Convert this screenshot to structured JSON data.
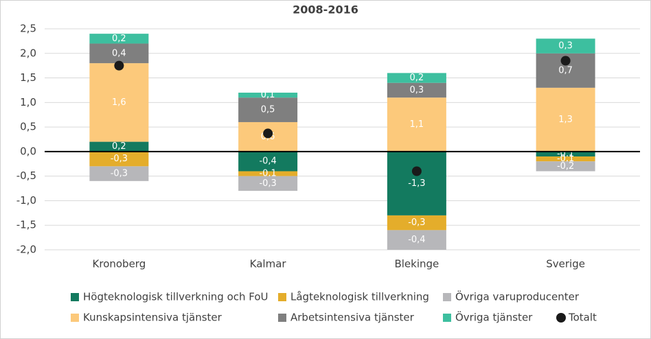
{
  "chart_data": {
    "type": "bar",
    "stacked": true,
    "title": "2008-2016",
    "categories": [
      "Kronoberg",
      "Kalmar",
      "Blekinge",
      "Sverige"
    ],
    "series": [
      {
        "name": "Högteknologisk tillverkning och FoU",
        "color": "#137a5f",
        "values": [
          0.2,
          -0.4,
          -1.3,
          -0.1
        ],
        "value_labels": [
          "0,2",
          "-0,4",
          "-1,3",
          "-0,1"
        ]
      },
      {
        "name": "Lågteknologisk tillverkning",
        "color": "#e4ad2b",
        "values": [
          -0.3,
          -0.1,
          -0.3,
          -0.1
        ],
        "value_labels": [
          "-0,3",
          "-0,1",
          "-0,3",
          "-0,1"
        ]
      },
      {
        "name": "Övriga varuproducenter",
        "color": "#b7b7ba",
        "values": [
          -0.3,
          -0.3,
          -0.4,
          -0.2
        ],
        "value_labels": [
          "-0,3",
          "-0,3",
          "-0,4",
          "-0,2"
        ]
      },
      {
        "name": "Kunskapsintensiva tjänster",
        "color": "#fcc97b",
        "values": [
          1.6,
          0.6,
          1.1,
          1.3
        ],
        "value_labels": [
          "1,6",
          "0,6",
          "1,1",
          "1,3"
        ]
      },
      {
        "name": "Arbetsintensiva tjänster",
        "color": "#7f7f7f",
        "values": [
          0.4,
          0.5,
          0.3,
          0.7
        ],
        "value_labels": [
          "0,4",
          "0,5",
          "0,3",
          "0,7"
        ]
      },
      {
        "name": "Övriga tjänster",
        "color": "#3dbf9f",
        "values": [
          0.2,
          0.1,
          0.2,
          0.3
        ],
        "value_labels": [
          "0,2",
          "0,1",
          "0,2",
          "0,3"
        ]
      },
      {
        "name": "Totalt",
        "type": "scatter",
        "color": "#1a1a1a",
        "values": [
          1.75,
          0.37,
          -0.4,
          1.85
        ]
      }
    ],
    "ylim": [
      -2.0,
      2.5
    ],
    "yticks": [
      {
        "value": -2.0,
        "label": "-2,0"
      },
      {
        "value": -1.5,
        "label": "-1,5"
      },
      {
        "value": -1.0,
        "label": "-1,0"
      },
      {
        "value": -0.5,
        "label": "-0,5"
      },
      {
        "value": 0.0,
        "label": "0,0"
      },
      {
        "value": 0.5,
        "label": "0,5"
      },
      {
        "value": 1.0,
        "label": "1,0"
      },
      {
        "value": 1.5,
        "label": "1,5"
      },
      {
        "value": 2.0,
        "label": "2,0"
      },
      {
        "value": 2.5,
        "label": "2,5"
      }
    ],
    "grid": true,
    "legend": "bottom"
  }
}
